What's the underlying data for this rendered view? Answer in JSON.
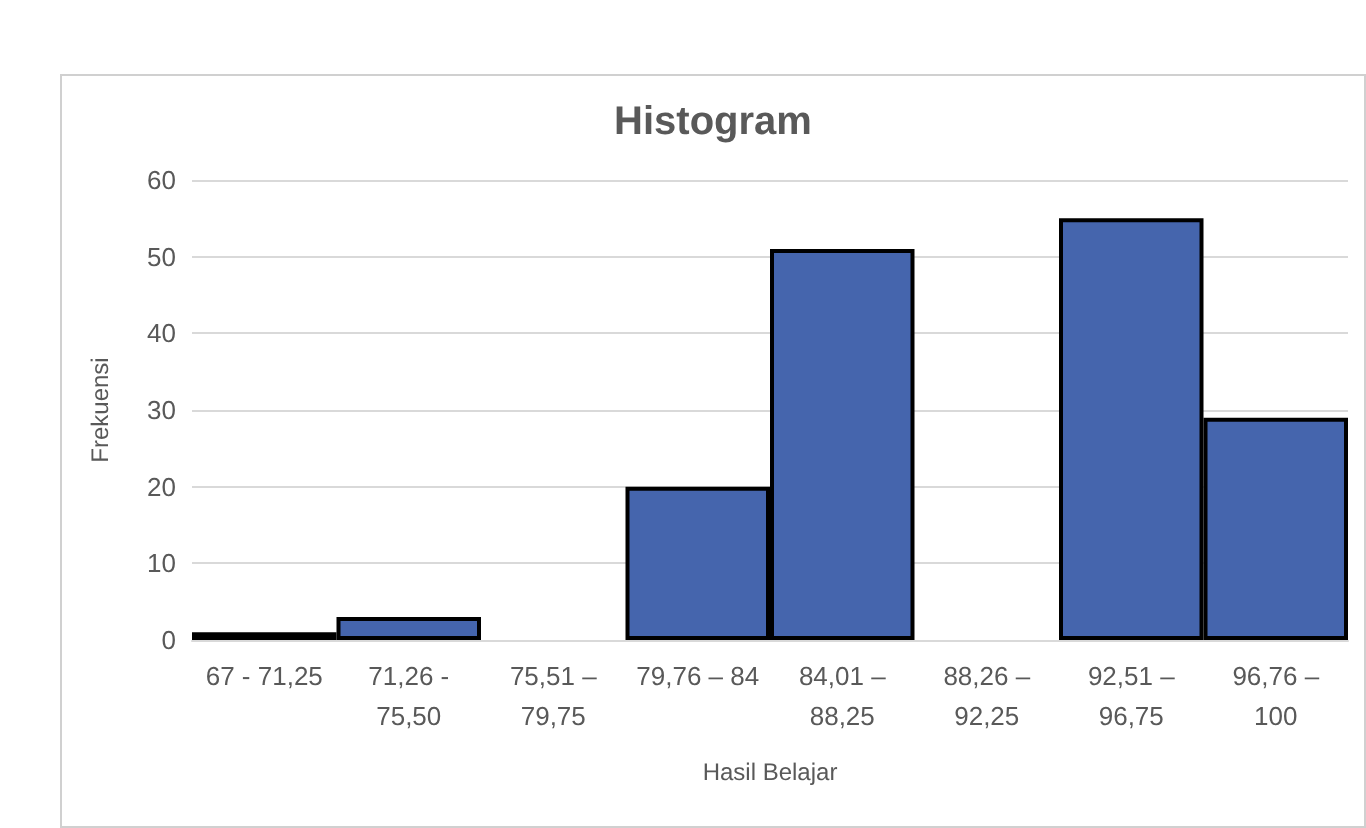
{
  "chart_data": {
    "type": "bar",
    "title": "Histogram",
    "xlabel": "Hasil Belajar",
    "ylabel": "Frekuensi",
    "categories": [
      "67 - 71,25",
      "71,26 - 75,50",
      "75,51 – 79,75",
      "79,76 – 84",
      "84,01 – 88,25",
      "88,26 – 92,25",
      "92,51 – 96,75",
      "96,76 – 100"
    ],
    "values": [
      1,
      3,
      0,
      20,
      51,
      0,
      55,
      29
    ],
    "color": "#4565ad",
    "ylim": [
      0,
      60
    ],
    "yticks": [
      0,
      10,
      20,
      30,
      40,
      50,
      60
    ],
    "grid": "y"
  }
}
